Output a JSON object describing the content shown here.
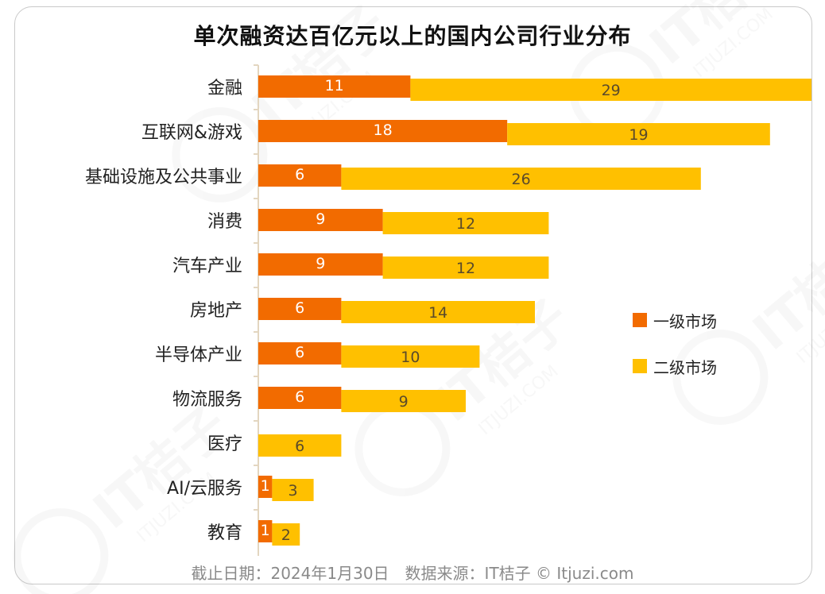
{
  "title": "单次融资达百亿元以上的国内公司行业分布",
  "footer": "截止日期：2024年1月30日　数据来源：IT桔子 © Itjuzi.com",
  "watermark": {
    "text": "IT桔子",
    "subtext": "ITJUZI.COM"
  },
  "colors": {
    "primary": "#F26B00",
    "secondary": "#FFC000"
  },
  "chart_data": {
    "type": "bar",
    "orientation": "horizontal",
    "stacked": true,
    "title": "单次融资达百亿元以上的国内公司行业分布",
    "categories": [
      "金融",
      "互联网&游戏",
      "基础设施及公共事业",
      "消费",
      "汽车产业",
      "房地产",
      "半导体产业",
      "物流服务",
      "医疗",
      "AI/云服务",
      "教育"
    ],
    "series": [
      {
        "name": "一级市场",
        "color": "#F26B00",
        "values": [
          11,
          18,
          6,
          9,
          9,
          6,
          6,
          6,
          0,
          1,
          1
        ]
      },
      {
        "name": "二级市场",
        "color": "#FFC000",
        "values": [
          29,
          19,
          26,
          12,
          12,
          14,
          10,
          9,
          6,
          3,
          2
        ]
      }
    ],
    "xlim": [
      0,
      40
    ],
    "grid": false,
    "legend_position": "right"
  }
}
